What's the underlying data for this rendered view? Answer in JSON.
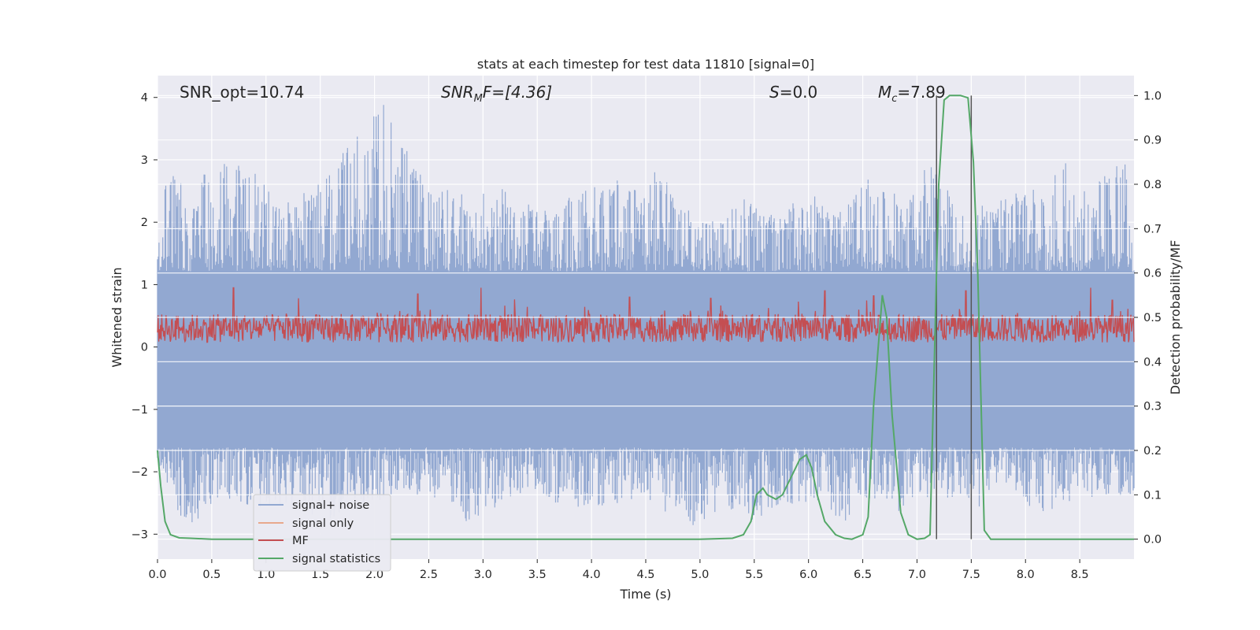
{
  "chart_data": {
    "type": "line",
    "title": "stats at each timestep for test data 11810 [signal=0]",
    "xlabel": "Time (s)",
    "ylabel": "Whitened strain",
    "ylabel_right": "Detection probability/MF",
    "xlim": [
      0,
      9
    ],
    "ylim": [
      -3.4,
      4.35
    ],
    "ylim_right": [
      -0.045,
      1.045
    ],
    "x_ticks": [
      "0.0",
      "0.5",
      "1.0",
      "1.5",
      "2.0",
      "2.5",
      "3.0",
      "3.5",
      "4.0",
      "4.5",
      "5.0",
      "5.5",
      "6.0",
      "6.5",
      "7.0",
      "7.5",
      "8.0",
      "8.5"
    ],
    "y_ticks": [
      "−3",
      "−2",
      "−1",
      "0",
      "1",
      "2",
      "3",
      "4"
    ],
    "y_ticks_right": [
      "0.0",
      "0.1",
      "0.2",
      "0.3",
      "0.4",
      "0.5",
      "0.6",
      "0.7",
      "0.8",
      "0.9",
      "1.0"
    ],
    "grid": true,
    "legend_position": "lower-left",
    "annotations": {
      "snr_opt": "SNR_opt=10.74",
      "snr_mf_prefix": "SNR",
      "snr_mf_sub": "M",
      "snr_mf_suffix": "F=[4.36]",
      "s_prefix": "S",
      "s_suffix": "=0.0",
      "mc_prefix": "M",
      "mc_sub": "c",
      "mc_suffix": "=7.89"
    },
    "series": [
      {
        "name": "signal+ noise",
        "color": "#92a8d1",
        "axis": "left",
        "envelope_upper": [
          [
            0.0,
            1.6
          ],
          [
            0.05,
            2.05
          ],
          [
            0.09,
            3.1
          ],
          [
            0.3,
            2.3
          ],
          [
            0.46,
            2.9
          ],
          [
            0.82,
            3.15
          ],
          [
            1.1,
            2.3
          ],
          [
            1.4,
            2.5
          ],
          [
            2.13,
            4.0
          ],
          [
            2.5,
            2.6
          ],
          [
            2.92,
            2.4
          ],
          [
            3.2,
            2.6
          ],
          [
            3.6,
            2.2
          ],
          [
            3.9,
            2.5
          ],
          [
            4.2,
            2.7
          ],
          [
            4.5,
            2.5
          ],
          [
            4.6,
            2.9
          ],
          [
            5.0,
            2.0
          ],
          [
            5.2,
            2.1
          ],
          [
            5.4,
            2.4
          ],
          [
            5.7,
            2.1
          ],
          [
            6.05,
            2.6
          ],
          [
            6.2,
            2.1
          ],
          [
            6.6,
            2.8
          ],
          [
            6.9,
            2.3
          ],
          [
            7.1,
            3.0
          ],
          [
            7.3,
            2.5
          ],
          [
            7.5,
            2.2
          ],
          [
            7.8,
            2.4
          ],
          [
            8.1,
            2.6
          ],
          [
            8.4,
            3.0
          ],
          [
            8.6,
            2.5
          ],
          [
            8.92,
            3.15
          ],
          [
            9.0,
            1.3
          ]
        ],
        "envelope_lower": [
          [
            0.0,
            -1.9
          ],
          [
            0.05,
            -2.0
          ],
          [
            0.1,
            -2.3
          ],
          [
            0.26,
            -3.1
          ],
          [
            0.5,
            -2.5
          ],
          [
            0.85,
            -2.6
          ],
          [
            1.2,
            -2.6
          ],
          [
            1.6,
            -2.8
          ],
          [
            2.0,
            -2.5
          ],
          [
            2.3,
            -2.3
          ],
          [
            2.55,
            -2.5
          ],
          [
            2.95,
            -2.9
          ],
          [
            3.2,
            -2.4
          ],
          [
            3.6,
            -2.5
          ],
          [
            4.0,
            -2.6
          ],
          [
            4.5,
            -2.4
          ],
          [
            4.93,
            -3.0
          ],
          [
            5.2,
            -2.6
          ],
          [
            5.5,
            -2.8
          ],
          [
            6.0,
            -2.5
          ],
          [
            6.35,
            -2.8
          ],
          [
            6.5,
            -2.4
          ],
          [
            6.8,
            -2.7
          ],
          [
            7.0,
            -2.55
          ],
          [
            7.2,
            -2.4
          ],
          [
            7.6,
            -2.6
          ],
          [
            7.8,
            -2.3
          ],
          [
            8.15,
            -2.7
          ],
          [
            8.5,
            -2.5
          ],
          [
            8.9,
            -2.4
          ],
          [
            9.0,
            -2.65
          ]
        ]
      },
      {
        "name": "signal only",
        "color": "#e8a98c",
        "axis": "left",
        "values_note": ""
      },
      {
        "name": "MF",
        "color": "#c44e52",
        "axis": "left",
        "baseline": 0.3,
        "spikes": [
          [
            0.7,
            0.95
          ],
          [
            1.3,
            0.78
          ],
          [
            2.4,
            0.85
          ],
          [
            2.98,
            0.95
          ],
          [
            4.35,
            0.8
          ],
          [
            5.1,
            0.78
          ],
          [
            6.15,
            0.9
          ],
          [
            6.6,
            0.82
          ],
          [
            7.45,
            0.9
          ],
          [
            8.6,
            0.95
          ],
          [
            8.8,
            0.75
          ]
        ]
      },
      {
        "name": "signal statistics",
        "color": "#55a868",
        "axis": "right",
        "x": [
          0.0,
          0.03,
          0.07,
          0.12,
          0.2,
          0.3,
          0.5,
          1.0,
          2.0,
          3.0,
          4.0,
          5.0,
          5.3,
          5.4,
          5.47,
          5.52,
          5.58,
          5.62,
          5.7,
          5.76,
          5.8,
          5.86,
          5.92,
          5.98,
          6.03,
          6.08,
          6.15,
          6.25,
          6.33,
          6.4,
          6.5,
          6.55,
          6.6,
          6.68,
          6.72,
          6.77,
          6.85,
          6.92,
          7.0,
          7.07,
          7.12,
          7.2,
          7.25,
          7.3,
          7.4,
          7.47,
          7.52,
          7.56,
          7.62,
          7.68,
          8.0,
          9.0
        ],
        "y": [
          0.2,
          0.12,
          0.04,
          0.01,
          0.003,
          0.002,
          0.0,
          0.0,
          0.0,
          0.0,
          0.0,
          0.0,
          0.002,
          0.01,
          0.04,
          0.1,
          0.115,
          0.1,
          0.09,
          0.1,
          0.12,
          0.15,
          0.18,
          0.19,
          0.16,
          0.1,
          0.04,
          0.01,
          0.002,
          0.0,
          0.01,
          0.05,
          0.3,
          0.55,
          0.5,
          0.28,
          0.06,
          0.01,
          0.0,
          0.002,
          0.01,
          0.8,
          0.99,
          1.0,
          1.0,
          0.995,
          0.85,
          0.6,
          0.02,
          0.0,
          0.0,
          0.0
        ]
      }
    ],
    "vertical_lines": [
      {
        "x": 7.18,
        "y_right": [
          0.0,
          1.0
        ]
      },
      {
        "x": 7.5,
        "y_right": [
          0.0,
          1.0
        ]
      }
    ]
  }
}
